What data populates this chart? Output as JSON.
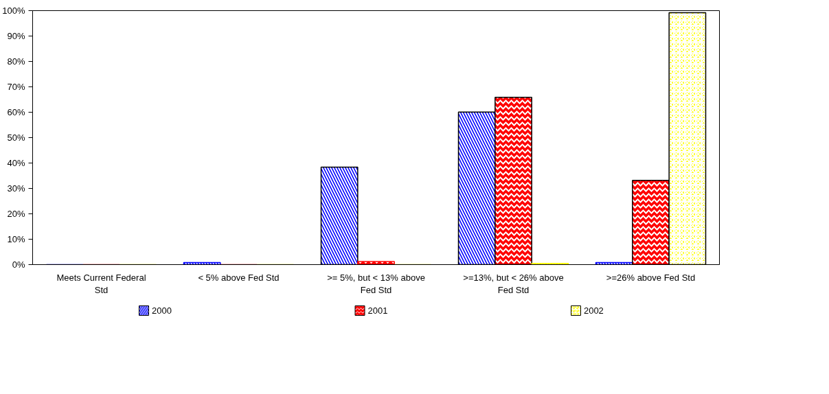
{
  "chart_data": {
    "type": "bar",
    "categories": [
      "Meets Current Federal Std",
      "< 5% above Fed Std",
      ">= 5%, but < 13% above Fed Std",
      ">=13%, but < 26% above Fed Std",
      ">=26% above Fed Std"
    ],
    "series": [
      {
        "name": "2000",
        "color": "#0000ff",
        "values": [
          0,
          0.8,
          38.4,
          60.1,
          0.8
        ]
      },
      {
        "name": "2001",
        "color": "#ff0000",
        "values": [
          0,
          0,
          1.2,
          65.9,
          33.2
        ]
      },
      {
        "name": "2002",
        "color": "#ffff00",
        "values": [
          0,
          0,
          0,
          0.5,
          99.2
        ]
      }
    ],
    "ylim": [
      0,
      100
    ],
    "yticks": [
      {
        "value": 0,
        "label": "0%"
      },
      {
        "value": 10,
        "label": "10%"
      },
      {
        "value": 20,
        "label": "20%"
      },
      {
        "value": 30,
        "label": "30%"
      },
      {
        "value": 40,
        "label": "40%"
      },
      {
        "value": 50,
        "label": "50%"
      },
      {
        "value": 60,
        "label": "60%"
      },
      {
        "value": 70,
        "label": "70%"
      },
      {
        "value": 80,
        "label": "80%"
      },
      {
        "value": 90,
        "label": "90%"
      },
      {
        "value": 100,
        "label": "100%"
      }
    ],
    "grid": false,
    "legend": "bottom"
  }
}
